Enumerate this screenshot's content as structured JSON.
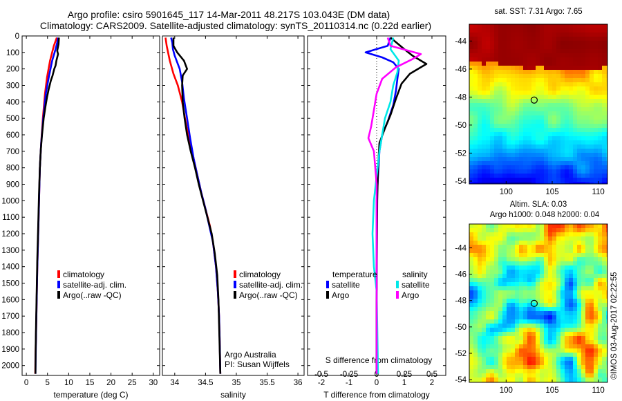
{
  "header": {
    "line1": "Argo profile: csiro 5901645_117 14-Mar-2011 48.217S 103.043E (DM data)",
    "line2": "Climatology: CARS2009. Satellite-adjusted climatology: synTS_20110314.nc (0.22d earlier)"
  },
  "colors": {
    "climatology": "#ff0000",
    "satellite": "#0000ff",
    "argo": "#000000",
    "t_satellite": "#0000ff",
    "t_argo": "#000000",
    "s_satellite": "#00e8e8",
    "s_argo": "#ff00ff"
  },
  "depth_axis": {
    "ticks": [
      0,
      100,
      200,
      300,
      400,
      500,
      600,
      700,
      800,
      900,
      1000,
      1100,
      1200,
      1300,
      1400,
      1500,
      1600,
      1700,
      1800,
      1900,
      2000
    ],
    "range": [
      0,
      2060
    ]
  },
  "chart_data": [
    {
      "type": "line",
      "id": "temperature",
      "xlabel": "temperature (deg C)",
      "xlim": [
        -1,
        31.5
      ],
      "xticks": [
        0,
        5,
        10,
        15,
        20,
        25,
        30
      ],
      "xtick_labels": [
        "0",
        "5",
        "10",
        "15",
        "20",
        "25",
        "30"
      ],
      "y_inverted": true,
      "legend": [
        "climatology",
        "satellite-adj. clim.",
        "Argo(..raw -QC)"
      ],
      "legend_position": "lower-right",
      "series": [
        {
          "name": "climatology",
          "color": "#ff0000",
          "points": [
            [
              7.2,
              10
            ],
            [
              6.5,
              60
            ],
            [
              5.6,
              150
            ],
            [
              4.9,
              250
            ],
            [
              4.4,
              350
            ],
            [
              3.9,
              500
            ],
            [
              3.5,
              650
            ],
            [
              3.2,
              800
            ],
            [
              3.0,
              1000
            ],
            [
              2.8,
              1200
            ],
            [
              2.6,
              1400
            ],
            [
              2.45,
              1600
            ],
            [
              2.3,
              1800
            ],
            [
              2.15,
              1950
            ],
            [
              2.1,
              2050
            ]
          ]
        },
        {
          "name": "satellite-adj. clim.",
          "color": "#0000ff",
          "points": [
            [
              7.5,
              10
            ],
            [
              7.3,
              40
            ],
            [
              6.9,
              80
            ],
            [
              6.1,
              150
            ],
            [
              5.3,
              250
            ],
            [
              4.6,
              350
            ],
            [
              4.0,
              500
            ],
            [
              3.5,
              650
            ],
            [
              3.2,
              800
            ],
            [
              3.0,
              1000
            ],
            [
              2.8,
              1200
            ],
            [
              2.6,
              1400
            ],
            [
              2.45,
              1600
            ],
            [
              2.3,
              1800
            ],
            [
              2.2,
              1950
            ],
            [
              2.15,
              2050
            ]
          ]
        },
        {
          "name": "Argo(..raw -QC)",
          "color": "#000000",
          "points": [
            [
              7.7,
              10
            ],
            [
              7.6,
              50
            ],
            [
              7.3,
              90
            ],
            [
              7.5,
              110
            ],
            [
              7.1,
              150
            ],
            [
              6.9,
              180
            ],
            [
              6.6,
              200
            ],
            [
              6.2,
              240
            ],
            [
              5.8,
              270
            ],
            [
              5.3,
              320
            ],
            [
              4.9,
              370
            ],
            [
              4.5,
              430
            ],
            [
              4.1,
              500
            ],
            [
              3.7,
              600
            ],
            [
              3.4,
              700
            ],
            [
              3.2,
              800
            ],
            [
              3.0,
              950
            ],
            [
              2.8,
              1150
            ],
            [
              2.6,
              1350
            ],
            [
              2.45,
              1550
            ],
            [
              2.3,
              1750
            ],
            [
              2.2,
              1900
            ],
            [
              2.15,
              2050
            ]
          ]
        }
      ]
    },
    {
      "type": "line",
      "id": "salinity",
      "xlabel": "salinity",
      "xlim": [
        33.8,
        36.1
      ],
      "xticks": [
        34,
        34.5,
        35,
        35.5,
        36
      ],
      "xtick_labels": [
        "34",
        "34.5",
        "35",
        "35.5",
        "36"
      ],
      "y_inverted": true,
      "legend": [
        "climatology",
        "satellite-adj. clim.",
        "Argo(..raw -QC)"
      ],
      "legend_position": "lower-right",
      "annotation": [
        "Argo Australia",
        "PI: Susan Wijffels"
      ],
      "series": [
        {
          "name": "climatology",
          "color": "#ff0000",
          "points": [
            [
              33.85,
              10
            ],
            [
              33.87,
              60
            ],
            [
              33.92,
              150
            ],
            [
              33.98,
              230
            ],
            [
              34.05,
              300
            ],
            [
              34.12,
              400
            ],
            [
              34.19,
              550
            ],
            [
              34.25,
              650
            ],
            [
              34.31,
              750
            ],
            [
              34.37,
              850
            ],
            [
              34.43,
              950
            ],
            [
              34.5,
              1050
            ],
            [
              34.57,
              1150
            ],
            [
              34.62,
              1250
            ],
            [
              34.67,
              1400
            ],
            [
              34.7,
              1550
            ],
            [
              34.72,
              1700
            ],
            [
              34.73,
              1850
            ],
            [
              34.74,
              2050
            ]
          ]
        },
        {
          "name": "satellite-adj. clim.",
          "color": "#0000ff",
          "points": [
            [
              33.94,
              10
            ],
            [
              33.96,
              40
            ],
            [
              33.97,
              80
            ],
            [
              34.0,
              120
            ],
            [
              34.08,
              200
            ],
            [
              34.12,
              280
            ],
            [
              34.15,
              380
            ],
            [
              34.2,
              500
            ],
            [
              34.25,
              620
            ],
            [
              34.31,
              750
            ],
            [
              34.37,
              850
            ],
            [
              34.43,
              950
            ],
            [
              34.5,
              1050
            ],
            [
              34.56,
              1150
            ],
            [
              34.62,
              1250
            ],
            [
              34.67,
              1400
            ],
            [
              34.7,
              1550
            ],
            [
              34.72,
              1700
            ],
            [
              34.73,
              1850
            ],
            [
              34.74,
              2050
            ]
          ]
        },
        {
          "name": "Argo(..raw -QC)",
          "color": "#000000",
          "points": [
            [
              33.98,
              10
            ],
            [
              33.98,
              60
            ],
            [
              34.04,
              100
            ],
            [
              34.15,
              150
            ],
            [
              34.2,
              200
            ],
            [
              34.13,
              240
            ],
            [
              34.12,
              300
            ],
            [
              34.13,
              400
            ],
            [
              34.16,
              500
            ],
            [
              34.2,
              600
            ],
            [
              34.26,
              700
            ],
            [
              34.33,
              800
            ],
            [
              34.39,
              900
            ],
            [
              34.46,
              1000
            ],
            [
              34.53,
              1100
            ],
            [
              34.6,
              1200
            ],
            [
              34.65,
              1320
            ],
            [
              34.69,
              1450
            ],
            [
              34.71,
              1600
            ],
            [
              34.72,
              1750
            ],
            [
              34.73,
              1900
            ],
            [
              34.74,
              2050
            ]
          ]
        }
      ]
    },
    {
      "type": "line",
      "id": "difference",
      "xlabel": "T difference from climatology",
      "xlabel_top": "S difference from climatology",
      "xlim": [
        -2.5,
        2.5
      ],
      "xticks": [
        -2,
        -1,
        0,
        1,
        2
      ],
      "xtick_labels": [
        "-2",
        "-1",
        "0",
        "1",
        "2"
      ],
      "xticks_top": [
        -0.5,
        -0.25,
        0,
        0.25,
        0.5
      ],
      "xtick_labels_top": [
        "-0.5",
        "-0.25",
        "0",
        "0.25",
        "0.5"
      ],
      "s_to_t_scale": 4,
      "y_inverted": true,
      "legend_titles": [
        "temperature",
        "salinity"
      ],
      "legend": [
        "satellite",
        "Argo",
        "satellite",
        "Argo"
      ],
      "series": [
        {
          "name": "satellite",
          "group": "temperature",
          "color": "#0000ff",
          "points": [
            [
              0.5,
              10
            ],
            [
              0.4,
              60
            ],
            [
              -0.4,
              100
            ],
            [
              0.2,
              130
            ],
            [
              0.6,
              160
            ],
            [
              0.8,
              200
            ],
            [
              0.75,
              260
            ],
            [
              0.7,
              330
            ],
            [
              0.6,
              420
            ],
            [
              0.4,
              520
            ],
            [
              0.2,
              600
            ],
            [
              0.1,
              700
            ],
            [
              0.05,
              850
            ],
            [
              0.0,
              1000
            ],
            [
              0.0,
              1500
            ],
            [
              0.0,
              2050
            ]
          ]
        },
        {
          "name": "Argo",
          "group": "temperature",
          "color": "#000000",
          "points": [
            [
              0.5,
              10
            ],
            [
              1.0,
              80
            ],
            [
              1.3,
              120
            ],
            [
              1.8,
              170
            ],
            [
              1.2,
              230
            ],
            [
              0.9,
              290
            ],
            [
              0.7,
              380
            ],
            [
              0.5,
              480
            ],
            [
              0.3,
              560
            ],
            [
              0.1,
              650
            ],
            [
              0.05,
              800
            ],
            [
              0.02,
              1000
            ],
            [
              0.0,
              1500
            ],
            [
              0.0,
              2050
            ]
          ]
        },
        {
          "name": "satellite",
          "group": "salinity",
          "color": "#00e8e8",
          "points": [
            [
              0.6,
              10
            ],
            [
              0.5,
              80
            ],
            [
              0.8,
              150
            ],
            [
              0.75,
              220
            ],
            [
              0.6,
              300
            ],
            [
              0.5,
              400
            ],
            [
              0.3,
              500
            ],
            [
              0.2,
              600
            ],
            [
              0.1,
              700
            ],
            [
              0.0,
              850
            ],
            [
              -0.1,
              1000
            ],
            [
              -0.15,
              1200
            ],
            [
              -0.1,
              1400
            ],
            [
              0.0,
              1550
            ],
            [
              0.05,
              2050
            ]
          ]
        },
        {
          "name": "Argo",
          "group": "salinity",
          "color": "#ff00ff",
          "points": [
            [
              0.4,
              10
            ],
            [
              0.5,
              60
            ],
            [
              1.6,
              110
            ],
            [
              1.3,
              140
            ],
            [
              0.7,
              190
            ],
            [
              0.2,
              260
            ],
            [
              0.0,
              350
            ],
            [
              -0.1,
              450
            ],
            [
              -0.2,
              550
            ],
            [
              -0.3,
              620
            ],
            [
              -0.1,
              700
            ],
            [
              0.0,
              900
            ],
            [
              0.0,
              1200
            ],
            [
              0.0,
              1500
            ],
            [
              0.0,
              2050
            ]
          ]
        }
      ]
    },
    {
      "type": "heatmap",
      "id": "sst",
      "title": "sat. SST: 7.31  Argo: 7.65",
      "xlim": [
        96,
        111
      ],
      "ylim": [
        -54.2,
        -42.8
      ],
      "xticks": [
        100,
        105,
        110
      ],
      "yticks": [
        -44,
        -46,
        -48,
        -50,
        -52,
        -54
      ],
      "marker": {
        "lon": 103.043,
        "lat": -48.217
      }
    },
    {
      "type": "heatmap",
      "id": "sla",
      "title": "Altim. SLA: 0.03",
      "subtitle": "Argo h1000: 0.048 h2000: 0.04",
      "xlim": [
        96,
        111
      ],
      "ylim": [
        -54.2,
        -42.2
      ],
      "xticks": [
        100,
        105,
        110
      ],
      "yticks": [
        -44,
        -46,
        -48,
        -50,
        -52,
        -54
      ],
      "marker": {
        "lon": 103.043,
        "lat": -48.217
      }
    }
  ],
  "footer": {
    "stamp": "©IMOS 03-Aug-2017 02:22:55"
  }
}
